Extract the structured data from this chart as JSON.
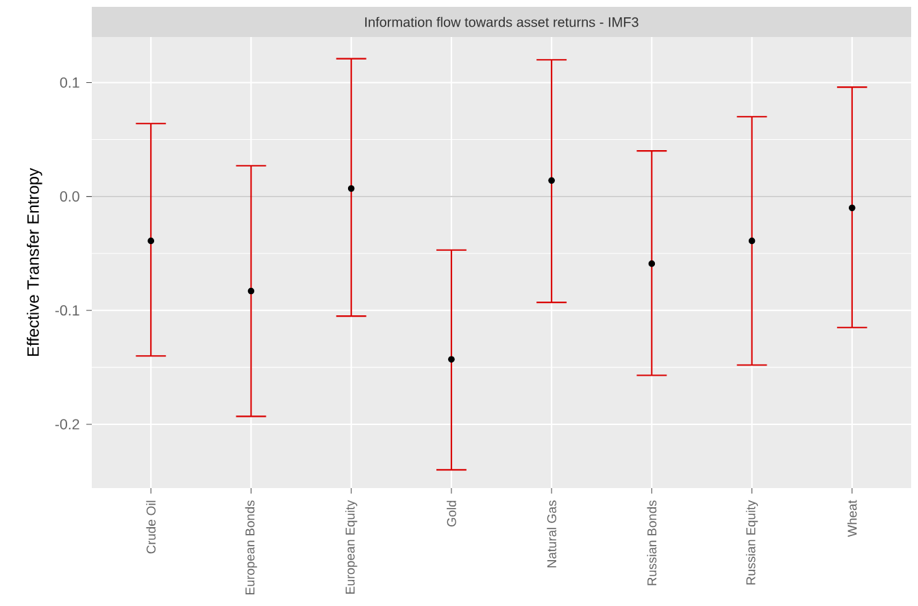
{
  "chart_data": {
    "type": "scatter",
    "title": "Information flow towards asset returns  - IMF3",
    "ylabel": "Effective Transfer Entropy",
    "categories": [
      "Crude Oil",
      "European Bonds",
      "European Equity",
      "Gold",
      "Natural Gas",
      "Russian Bonds",
      "Russian Equity",
      "Wheat"
    ],
    "series": [
      {
        "color": "#000000",
        "values": [
          -0.039,
          -0.083,
          0.007,
          -0.143,
          0.014,
          -0.059,
          -0.039,
          -0.01
        ],
        "errors": [
          [
            -0.14,
            0.064
          ],
          [
            -0.193,
            0.027
          ],
          [
            -0.105,
            0.121
          ],
          [
            -0.24,
            -0.047
          ],
          [
            -0.093,
            0.12
          ],
          [
            -0.157,
            0.04
          ],
          [
            -0.148,
            0.07
          ],
          [
            -0.115,
            0.096
          ]
        ]
      }
    ],
    "ylim": [
      -0.256,
      0.14
    ],
    "yticks": [
      0.1,
      {
        "value": 0,
        "label": "0.0"
      },
      -0.1,
      -0.2
    ],
    "grid": true,
    "marker": "circle"
  }
}
